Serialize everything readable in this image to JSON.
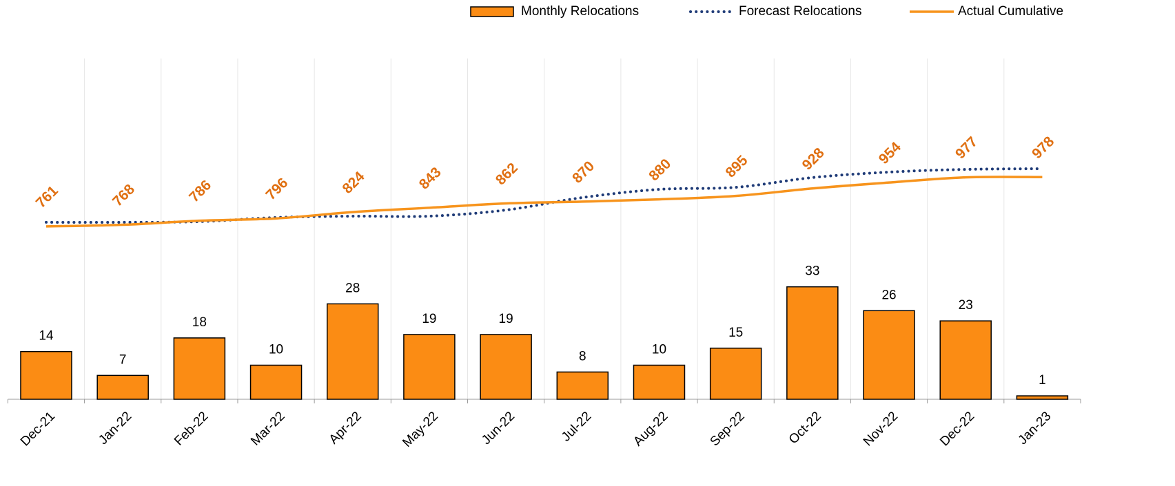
{
  "chart_data": {
    "type": "bar",
    "categories": [
      "Dec-21",
      "Jan-22",
      "Feb-22",
      "Mar-22",
      "Apr-22",
      "May-22",
      "Jun-22",
      "Jul-22",
      "Aug-22",
      "Sep-22",
      "Oct-22",
      "Nov-22",
      "Dec-22",
      "Jan-23"
    ],
    "series": [
      {
        "name": "Monthly Relocations",
        "type": "bar",
        "color": "#FB8C14",
        "values": [
          14,
          7,
          18,
          10,
          28,
          19,
          19,
          8,
          10,
          15,
          33,
          26,
          23,
          1
        ]
      },
      {
        "name": "Forecast Relocations",
        "type": "line",
        "style": "dotted",
        "axis": "y2",
        "color": "#203C78",
        "values": [
          779,
          779,
          782,
          800,
          806,
          806,
          833,
          888,
          924,
          933,
          976,
          1000,
          1012,
          1015
        ]
      },
      {
        "name": "Actual Cumulative",
        "type": "line",
        "style": "solid",
        "axis": "y2",
        "color": "#F7941D",
        "values": [
          761,
          768,
          786,
          796,
          824,
          843,
          862,
          870,
          880,
          895,
          928,
          954,
          977,
          978
        ]
      }
    ],
    "ylim": [
      0,
      100
    ],
    "y2lim": [
      0,
      1500
    ],
    "grid": true,
    "legend": "top"
  }
}
